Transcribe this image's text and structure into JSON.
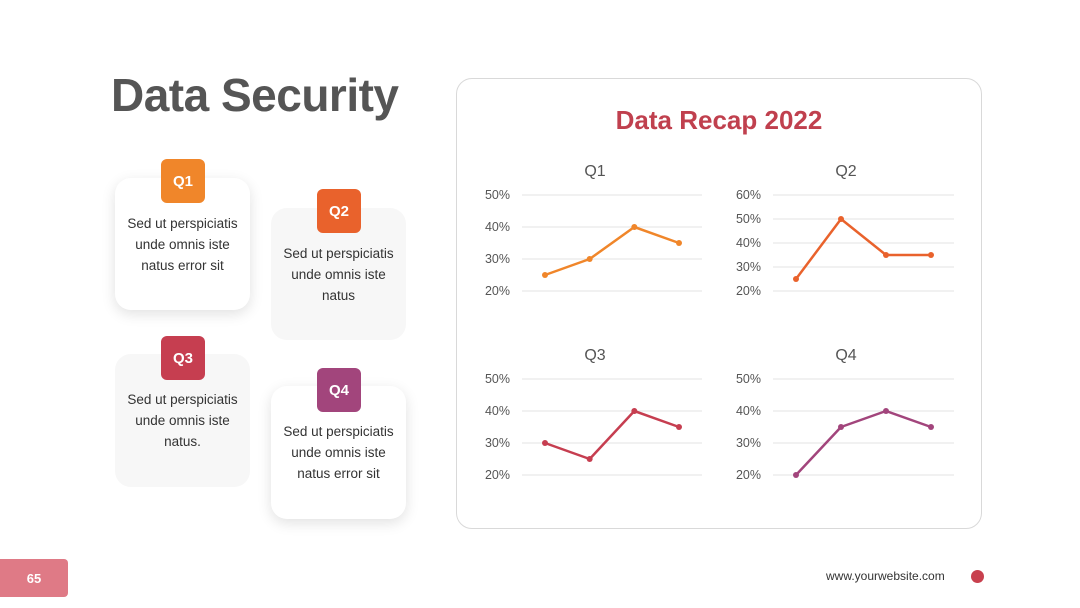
{
  "title": "Data Security",
  "cards": [
    {
      "badge": "Q1",
      "text": "Sed ut perspiciatis unde omnis iste natus error sit",
      "color": "#f0862a"
    },
    {
      "badge": "Q2",
      "text": "Sed ut perspiciatis unde omnis iste natus",
      "color": "#e9622c"
    },
    {
      "badge": "Q3",
      "text": "Sed ut perspiciatis unde omnis iste natus.",
      "color": "#c63e50"
    },
    {
      "badge": "Q4",
      "text": "Sed ut perspiciatis unde omnis iste natus error sit",
      "color": "#a2457c"
    }
  ],
  "panel": {
    "title": "Data Recap 2022"
  },
  "chart_data": [
    {
      "type": "line",
      "title": "Q1",
      "x": [
        1,
        2,
        3,
        4
      ],
      "values": [
        25,
        30,
        40,
        35
      ],
      "yticks": [
        "20%",
        "30%",
        "40%",
        "50%"
      ],
      "ylim": [
        20,
        50
      ],
      "grid": true,
      "color": "#f0862a"
    },
    {
      "type": "line",
      "title": "Q2",
      "x": [
        1,
        2,
        3,
        4
      ],
      "values": [
        25,
        50,
        35,
        35
      ],
      "yticks": [
        "20%",
        "30%",
        "40%",
        "50%",
        "60%"
      ],
      "ylim": [
        20,
        60
      ],
      "grid": true,
      "color": "#e9622c"
    },
    {
      "type": "line",
      "title": "Q3",
      "x": [
        1,
        2,
        3,
        4
      ],
      "values": [
        30,
        25,
        40,
        35
      ],
      "yticks": [
        "20%",
        "30%",
        "40%",
        "50%"
      ],
      "ylim": [
        20,
        50
      ],
      "grid": true,
      "color": "#c63e50"
    },
    {
      "type": "line",
      "title": "Q4",
      "x": [
        1,
        2,
        3,
        4
      ],
      "values": [
        20,
        35,
        40,
        35
      ],
      "yticks": [
        "20%",
        "30%",
        "40%",
        "50%"
      ],
      "ylim": [
        20,
        50
      ],
      "grid": true,
      "color": "#a2457c"
    }
  ],
  "footer": {
    "page": "65",
    "url": "www.yourwebsite.com",
    "accent": "#c8404e"
  }
}
